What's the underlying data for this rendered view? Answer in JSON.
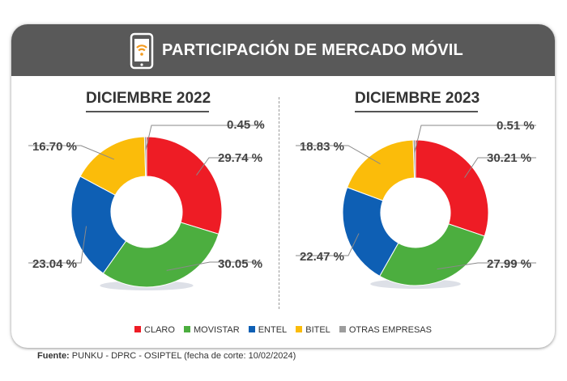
{
  "header": {
    "title": "PARTICIPACIÓN DE MERCADO MÓVIL",
    "icon": "smartphone-wifi-icon"
  },
  "colors": {
    "claro": "#ee1c25",
    "movistar": "#4cae3f",
    "entel": "#0e5fb4",
    "bitel": "#fbbc0a",
    "otras": "#9d9d9d"
  },
  "legend": [
    "CLARO",
    "MOVISTAR",
    "ENTEL",
    "BITEL",
    "OTRAS EMPRESAS"
  ],
  "source": {
    "label": "Fuente:",
    "text": " PUNKU - DPRC - OSIPTEL (fecha de corte: 10/02/2024)"
  },
  "chart_data": [
    {
      "type": "pie",
      "title": "DICIEMBRE 2022",
      "categories": [
        "CLARO",
        "MOVISTAR",
        "ENTEL",
        "BITEL",
        "OTRAS EMPRESAS"
      ],
      "values": [
        29.74,
        30.05,
        23.04,
        16.7,
        0.45
      ],
      "labels": [
        "29.74 %",
        "30.05 %",
        "23.04 %",
        "16.70 %",
        "0.45 %"
      ]
    },
    {
      "type": "pie",
      "title": "DICIEMBRE 2023",
      "categories": [
        "CLARO",
        "MOVISTAR",
        "ENTEL",
        "BITEL",
        "OTRAS EMPRESAS"
      ],
      "values": [
        30.21,
        27.99,
        22.47,
        18.83,
        0.51
      ],
      "labels": [
        "30.21 %",
        "27.99 %",
        "22.47 %",
        "18.83 %",
        "0.51 %"
      ]
    }
  ]
}
